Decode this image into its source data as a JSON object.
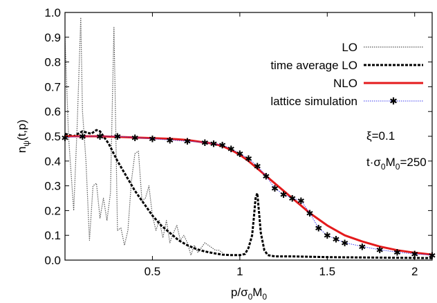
{
  "chart_data": {
    "type": "line",
    "xlabel_main": "p/σ",
    "xlabel_sub1": "0",
    "xlabel_mid": "M",
    "xlabel_sub2": "0",
    "ylabel_main": "n",
    "ylabel_sub": "ψ",
    "ylabel_tail": "(t,p)",
    "xlim": [
      0,
      2.1
    ],
    "ylim": [
      0,
      1.0
    ],
    "xticks": [
      {
        "value": 0.5,
        "label": "0.5"
      },
      {
        "value": 1.0,
        "label": "1"
      },
      {
        "value": 1.5,
        "label": "1.5"
      },
      {
        "value": 2.0,
        "label": "2"
      }
    ],
    "yticks": [
      {
        "value": 0.0,
        "label": "0.0"
      },
      {
        "value": 0.1,
        "label": "0.1"
      },
      {
        "value": 0.2,
        "label": "0.2"
      },
      {
        "value": 0.3,
        "label": "0.3"
      },
      {
        "value": 0.4,
        "label": "0.4"
      },
      {
        "value": 0.5,
        "label": "0.5"
      },
      {
        "value": 0.6,
        "label": "0.6"
      },
      {
        "value": 0.7,
        "label": "0.7"
      },
      {
        "value": 0.8,
        "label": "0.8"
      },
      {
        "value": 0.9,
        "label": "0.9"
      },
      {
        "value": 1.0,
        "label": "1.0"
      }
    ],
    "annotations": {
      "xi": "ξ=0.1",
      "time_main": "t·σ",
      "time_sub1": "0",
      "time_mid": "M",
      "time_sub2": "0",
      "time_tail": "=250"
    },
    "legend_position": "top-right",
    "series": [
      {
        "name": "LO",
        "style": "dotted",
        "color": "#555555",
        "x": [
          0.0,
          0.02,
          0.05,
          0.07,
          0.09,
          0.1,
          0.12,
          0.14,
          0.16,
          0.18,
          0.2,
          0.22,
          0.24,
          0.26,
          0.28,
          0.29,
          0.3,
          0.32,
          0.34,
          0.36,
          0.38,
          0.4,
          0.42,
          0.44,
          0.46,
          0.48,
          0.5,
          0.52,
          0.54,
          0.56,
          0.58,
          0.6,
          0.62,
          0.64,
          0.66,
          0.68,
          0.7,
          0.72,
          0.74,
          0.76,
          0.78,
          0.8,
          0.82,
          0.84,
          0.86,
          0.88,
          0.9
        ],
        "y": [
          0.9,
          0.5,
          0.2,
          0.55,
          0.98,
          0.6,
          0.4,
          0.08,
          0.3,
          0.31,
          0.17,
          0.25,
          0.16,
          0.27,
          0.94,
          0.55,
          0.12,
          0.13,
          0.06,
          0.12,
          0.32,
          0.43,
          0.44,
          0.24,
          0.25,
          0.3,
          0.18,
          0.12,
          0.16,
          0.09,
          0.16,
          0.07,
          0.11,
          0.14,
          0.08,
          0.1,
          0.07,
          0.02,
          0.06,
          0.03,
          0.05,
          0.07,
          0.06,
          0.05,
          0.04,
          0.04,
          0.03
        ]
      },
      {
        "name": "time average LO",
        "style": "dashed",
        "color": "#000000",
        "x": [
          0.0,
          0.05,
          0.1,
          0.15,
          0.18,
          0.2,
          0.25,
          0.3,
          0.35,
          0.4,
          0.45,
          0.5,
          0.55,
          0.6,
          0.65,
          0.7,
          0.75,
          0.8,
          0.85,
          0.9,
          0.95,
          1.0,
          1.03,
          1.05,
          1.07,
          1.08,
          1.09,
          1.1,
          1.11,
          1.12,
          1.14,
          1.16,
          1.2,
          1.3,
          1.5,
          1.8,
          2.1
        ],
        "y": [
          0.51,
          0.5,
          0.52,
          0.51,
          0.525,
          0.52,
          0.47,
          0.4,
          0.34,
          0.28,
          0.23,
          0.18,
          0.14,
          0.11,
          0.08,
          0.06,
          0.045,
          0.035,
          0.028,
          0.022,
          0.02,
          0.02,
          0.025,
          0.05,
          0.1,
          0.17,
          0.25,
          0.27,
          0.19,
          0.11,
          0.04,
          0.02,
          0.015,
          0.015,
          0.012,
          0.01,
          0.008
        ]
      },
      {
        "name": "NLO",
        "style": "solid",
        "color": "#e41a1c",
        "x": [
          0.0,
          0.2,
          0.4,
          0.6,
          0.7,
          0.8,
          0.85,
          0.9,
          0.95,
          1.0,
          1.05,
          1.1,
          1.15,
          1.2,
          1.25,
          1.3,
          1.35,
          1.4,
          1.5,
          1.6,
          1.7,
          1.8,
          1.9,
          2.0,
          2.1
        ],
        "y": [
          0.5,
          0.5,
          0.495,
          0.49,
          0.485,
          0.475,
          0.47,
          0.46,
          0.445,
          0.425,
          0.4,
          0.37,
          0.34,
          0.31,
          0.28,
          0.25,
          0.22,
          0.19,
          0.14,
          0.1,
          0.075,
          0.055,
          0.04,
          0.03,
          0.022
        ]
      },
      {
        "name": "lattice simulation",
        "style": "points",
        "color": "#3a3aef",
        "x": [
          0.0,
          0.1,
          0.2,
          0.3,
          0.4,
          0.5,
          0.6,
          0.7,
          0.8,
          0.85,
          0.9,
          0.95,
          1.0,
          1.05,
          1.1,
          1.15,
          1.2,
          1.25,
          1.3,
          1.35,
          1.4,
          1.45,
          1.5,
          1.55,
          1.6,
          1.7,
          1.8,
          1.9,
          2.0,
          2.1
        ],
        "y": [
          0.495,
          0.5,
          0.5,
          0.5,
          0.495,
          0.49,
          0.485,
          0.48,
          0.475,
          0.47,
          0.465,
          0.45,
          0.43,
          0.41,
          0.38,
          0.34,
          0.29,
          0.265,
          0.25,
          0.24,
          0.19,
          0.13,
          0.1,
          0.085,
          0.07,
          0.055,
          0.042,
          0.032,
          0.025,
          0.02
        ]
      }
    ]
  }
}
